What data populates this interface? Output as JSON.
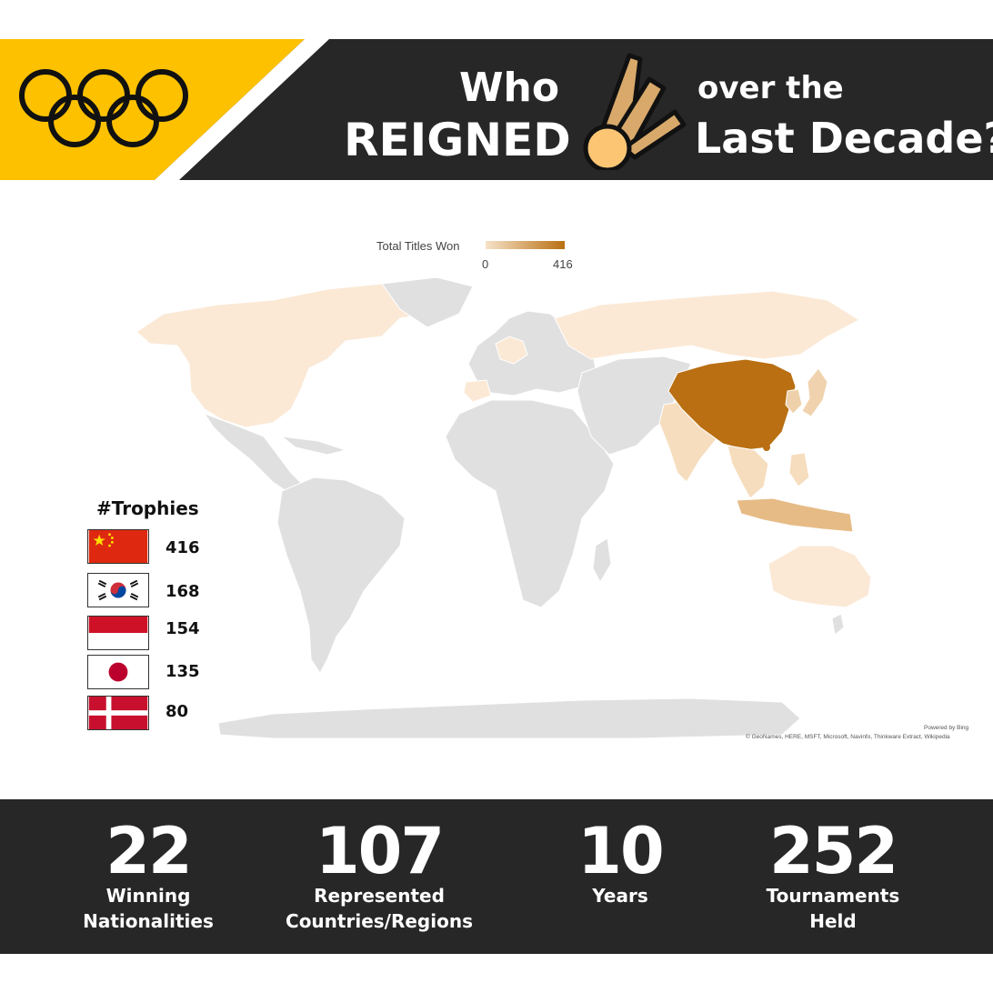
{
  "header": {
    "title_line1_left": "Who",
    "title_line2_left": "REIGNED",
    "title_line1_right": "over the",
    "title_line2_right": "Last Decade?",
    "colors": {
      "accent": "#FDC100",
      "dark": "#272727",
      "text": "#FFFFFF"
    },
    "icons": [
      "olympic-rings-icon",
      "shuttlecock-icon"
    ]
  },
  "map": {
    "scale_label": "Total Titles Won",
    "scale_min": "0",
    "scale_max": "416",
    "scale_colors": {
      "low": "#F6E2C8",
      "high": "#B96F12",
      "no_data": "#E0E0E0"
    },
    "credit_line1": "Powered by Bing",
    "credit_line2": "© GeoNames, HERE, MSFT, Microsoft, Navinfo, Thinkware Extract, Wikipedia"
  },
  "trophies": {
    "title": "#Trophies",
    "rows": [
      {
        "flag": "china-flag-icon",
        "count": "416"
      },
      {
        "flag": "south-korea-flag-icon",
        "count": "168"
      },
      {
        "flag": "indonesia-flag-icon",
        "count": "154"
      },
      {
        "flag": "japan-flag-icon",
        "count": "135"
      },
      {
        "flag": "denmark-flag-icon",
        "count": "80"
      }
    ]
  },
  "stats": [
    {
      "value": "22",
      "label1": "Winning",
      "label2": "Nationalities"
    },
    {
      "value": "107",
      "label1": "Represented",
      "label2": "Countries/Regions"
    },
    {
      "value": "10",
      "label1": "Years",
      "label2": ""
    },
    {
      "value": "252",
      "label1": "Tournaments",
      "label2": "Held"
    }
  ]
}
